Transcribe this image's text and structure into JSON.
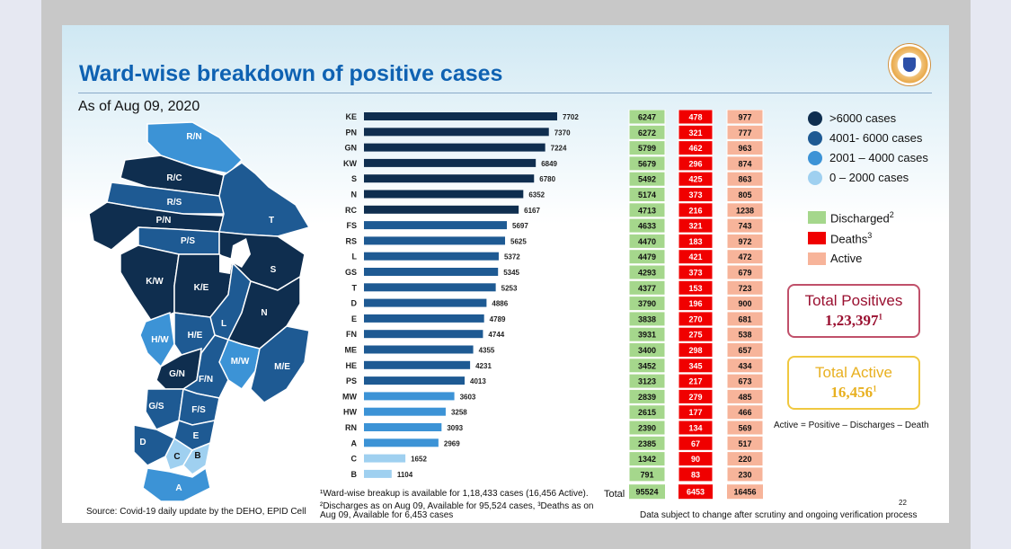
{
  "slide": {
    "title": "Ward-wise breakdown of positive cases",
    "as_of": "As of Aug 09, 2020",
    "page_number": "22",
    "total_label": "Total",
    "footnote1": "¹Ward-wise breakup is available for 1,18,433 cases (16,456 Active).",
    "footnote2": "²Discharges as on Aug 09, Available for 95,524  cases, ³Deaths as on Aug 09, Available for 6,453 cases",
    "source": "Source: Covid-19 daily update by the DEHO, EPID Cell",
    "disclaimer": "Data subject to change after scrutiny and ongoing verification process",
    "formula": "Active = Positive – Discharges – Death"
  },
  "legend": {
    "ranges": [
      {
        "label": ">6000 cases",
        "color": "#0f2e4f"
      },
      {
        "label": "4001- 6000 cases",
        "color": "#1e5a93"
      },
      {
        "label": "2001 – 4000 cases",
        "color": "#3c93d6"
      },
      {
        "label": "0 – 2000 cases",
        "color": "#9fd0f0"
      }
    ],
    "columns": [
      {
        "label": "Discharged",
        "sup": "2",
        "color": "#a5d78c"
      },
      {
        "label": "Deaths",
        "sup": "3",
        "color": "#f00000"
      },
      {
        "label": "Active",
        "sup": "",
        "color": "#f7b49a"
      }
    ]
  },
  "summary": {
    "total_positives_label": "Total Positives",
    "total_positives_value": "1,23,397",
    "total_positives_sup": "1",
    "total_active_label": "Total Active",
    "total_active_value": "16,456",
    "total_active_sup": "1"
  },
  "map": {
    "wards": [
      {
        "label": "R/N",
        "color": "#3c93d6"
      },
      {
        "label": "R/C",
        "color": "#0f2e4f"
      },
      {
        "label": "R/S",
        "color": "#1e5a93"
      },
      {
        "label": "P/N",
        "color": "#0f2e4f"
      },
      {
        "label": "T",
        "color": "#1e5a93"
      },
      {
        "label": "P/S",
        "color": "#1e5a93"
      },
      {
        "label": "S",
        "color": "#0f2e4f"
      },
      {
        "label": "K/W",
        "color": "#0f2e4f"
      },
      {
        "label": "K/E",
        "color": "#0f2e4f"
      },
      {
        "label": "L",
        "color": "#1e5a93"
      },
      {
        "label": "N",
        "color": "#0f2e4f"
      },
      {
        "label": "H/W",
        "color": "#3c93d6"
      },
      {
        "label": "H/E",
        "color": "#1e5a93"
      },
      {
        "label": "M/W",
        "color": "#3c93d6"
      },
      {
        "label": "M/E",
        "color": "#1e5a93"
      },
      {
        "label": "G/N",
        "color": "#0f2e4f"
      },
      {
        "label": "F/N",
        "color": "#1e5a93"
      },
      {
        "label": "G/S",
        "color": "#1e5a93"
      },
      {
        "label": "F/S",
        "color": "#1e5a93"
      },
      {
        "label": "E",
        "color": "#1e5a93"
      },
      {
        "label": "D",
        "color": "#1e5a93"
      },
      {
        "label": "C",
        "color": "#9fd0f0"
      },
      {
        "label": "B",
        "color": "#9fd0f0"
      },
      {
        "label": "A",
        "color": "#3c93d6"
      }
    ]
  },
  "chart_data": {
    "type": "bar",
    "orientation": "horizontal",
    "categories": [
      "KE",
      "PN",
      "GN",
      "KW",
      "S",
      "N",
      "RC",
      "FS",
      "RS",
      "L",
      "GS",
      "T",
      "D",
      "E",
      "FN",
      "ME",
      "HE",
      "PS",
      "MW",
      "HW",
      "RN",
      "A",
      "C",
      "B"
    ],
    "values": [
      7702,
      7370,
      7224,
      6849,
      6780,
      6352,
      6167,
      5697,
      5625,
      5372,
      5345,
      5253,
      4886,
      4789,
      4744,
      4355,
      4231,
      4013,
      3603,
      3258,
      3093,
      2969,
      1652,
      1104
    ],
    "data_labels": [
      "7702",
      "7370",
      "7224",
      "6849",
      "6780",
      "6352",
      "6167",
      "5697",
      "5625",
      "5372",
      "5345",
      "5253",
      "4886",
      "4789",
      "4744",
      "4355",
      "4231",
      "4013",
      "3603",
      "3258",
      "3093",
      "2969",
      "1652",
      "1104"
    ],
    "table": {
      "columns": [
        "Discharged",
        "Deaths",
        "Active"
      ],
      "discharged": [
        "6247",
        "6272",
        "5799",
        "5679",
        "5492",
        "5174",
        "4713",
        "4633",
        "4470",
        "4479",
        "4293",
        "4377",
        "3790",
        "3838",
        "3931",
        "3400",
        "3452",
        "3123",
        "2839",
        "2615",
        "2390",
        "2385",
        "1342",
        "791"
      ],
      "deaths": [
        "478",
        "321",
        "462",
        "296",
        "425",
        "373",
        "216",
        "321",
        "183",
        "421",
        "373",
        "153",
        "196",
        "270",
        "275",
        "298",
        "345",
        "217",
        "279",
        "177",
        "134",
        "67",
        "90",
        "83"
      ],
      "active": [
        "977",
        "777",
        "963",
        "874",
        "863",
        "805",
        "1238",
        "743",
        "972",
        "472",
        "679",
        "723",
        "900",
        "681",
        "538",
        "657",
        "434",
        "673",
        "485",
        "466",
        "569",
        "517",
        "220",
        "230"
      ],
      "totals": {
        "discharged": "95524",
        "deaths": "6453",
        "active": "16456"
      }
    }
  }
}
